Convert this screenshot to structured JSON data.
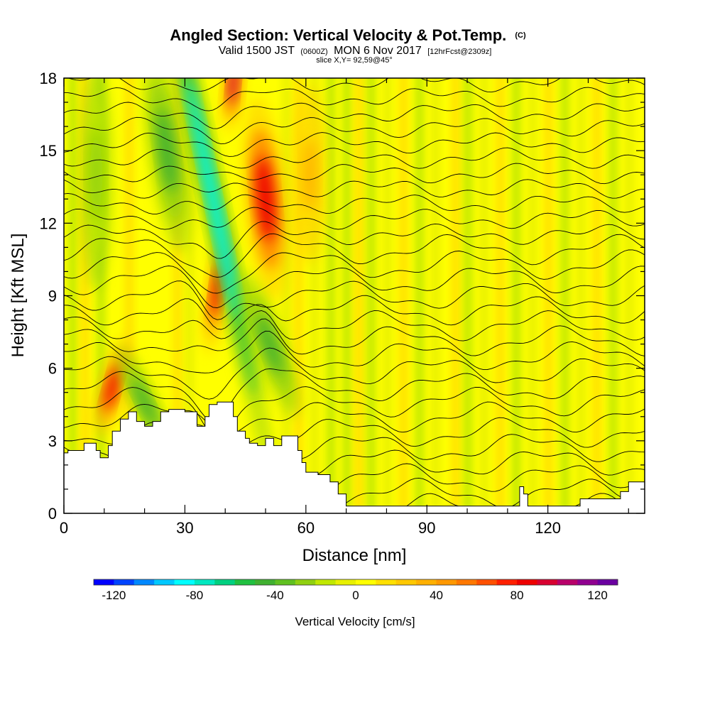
{
  "chart_data": {
    "type": "heatmap",
    "title": "Angled Section: Vertical Velocity & Pot.Temp.",
    "title_units": "(C)",
    "subtitle": {
      "valid": "Valid 1500 JST",
      "utc": "(0600Z)",
      "date": "MON 6 Nov 2017",
      "forecast": "[12hrFcst@2309z]"
    },
    "slice_label": "slice X,Y= 92,59@45°",
    "xlabel": "Distance [nm]",
    "ylabel": "Height [Kft MSL]",
    "xlim": [
      0,
      144
    ],
    "ylim": [
      0,
      18
    ],
    "xticks": [
      0,
      30,
      60,
      90,
      120
    ],
    "yticks": [
      0,
      3,
      6,
      9,
      12,
      15,
      18
    ],
    "colorbar": {
      "label": "Vertical Velocity [cm/s]",
      "range": [
        -130,
        130
      ],
      "step": 10,
      "tick_values": [
        -120,
        -80,
        -40,
        0,
        40,
        80,
        120
      ],
      "tick_labels": [
        "-120",
        "-80",
        "-40",
        "0",
        "40",
        "80",
        "120"
      ],
      "colors": [
        "#0000ff",
        "#0044ff",
        "#0088ff",
        "#00c8ff",
        "#00ffff",
        "#00e8c0",
        "#00d080",
        "#20c040",
        "#40b030",
        "#60c020",
        "#90d010",
        "#c0e800",
        "#e8f000",
        "#ffff00",
        "#ffe000",
        "#ffc800",
        "#ffb000",
        "#ff9800",
        "#ff7800",
        "#ff5000",
        "#ff2000",
        "#ee0000",
        "#d80030",
        "#b8006a",
        "#900090",
        "#6a00a0"
      ]
    },
    "terrain_kft": {
      "x": [
        0,
        1,
        5,
        8,
        9,
        11,
        12,
        14,
        16,
        18,
        20,
        22,
        24,
        26,
        30,
        33,
        35,
        36,
        38,
        42,
        43,
        45,
        46,
        48,
        50,
        52,
        54,
        56,
        58,
        59,
        60,
        63,
        66,
        68,
        70,
        80,
        95,
        110,
        113,
        114,
        115,
        125,
        128,
        132,
        138,
        140,
        144
      ],
      "height": [
        2.5,
        2.6,
        2.9,
        2.6,
        2.3,
        2.8,
        3.4,
        3.9,
        4.2,
        3.8,
        3.6,
        3.8,
        4.2,
        4.3,
        4.2,
        3.6,
        4.0,
        4.5,
        4.6,
        4.0,
        3.4,
        3.1,
        2.9,
        2.8,
        3.1,
        2.8,
        3.2,
        3.2,
        2.6,
        2.1,
        1.7,
        1.6,
        1.3,
        0.8,
        0.3,
        0.3,
        0.3,
        0.3,
        1.1,
        0.8,
        0.3,
        0.3,
        0.6,
        0.6,
        0.9,
        1.3,
        1.3
      ]
    },
    "features": [
      {
        "type": "updraft",
        "x": 12.0,
        "y": 5.2,
        "peak_cm_s": 80
      },
      {
        "type": "downdraft",
        "x": 20.0,
        "y": 4.6,
        "peak_cm_s": -50
      },
      {
        "type": "downdraft",
        "x": 25.5,
        "y": 15.0,
        "peak_cm_s": -45
      },
      {
        "type": "updraft",
        "x": 38.0,
        "y": 9.2,
        "peak_cm_s": 80
      },
      {
        "type": "downdraft",
        "x": 37.0,
        "y": 13.0,
        "peak_cm_s": -90
      },
      {
        "type": "updraft",
        "x": 42.0,
        "y": 17.8,
        "peak_cm_s": 90
      },
      {
        "type": "updraft",
        "x": 50.0,
        "y": 13.0,
        "peak_cm_s": 85
      },
      {
        "type": "downdraft",
        "x": 51.0,
        "y": 7.0,
        "peak_cm_s": -50
      },
      {
        "type": "updraft",
        "x": 61.0,
        "y": 14.0,
        "peak_cm_s": 30
      },
      {
        "type": "downdraft",
        "x": 8.0,
        "y": 14.0,
        "peak_cm_s": -30
      }
    ]
  }
}
